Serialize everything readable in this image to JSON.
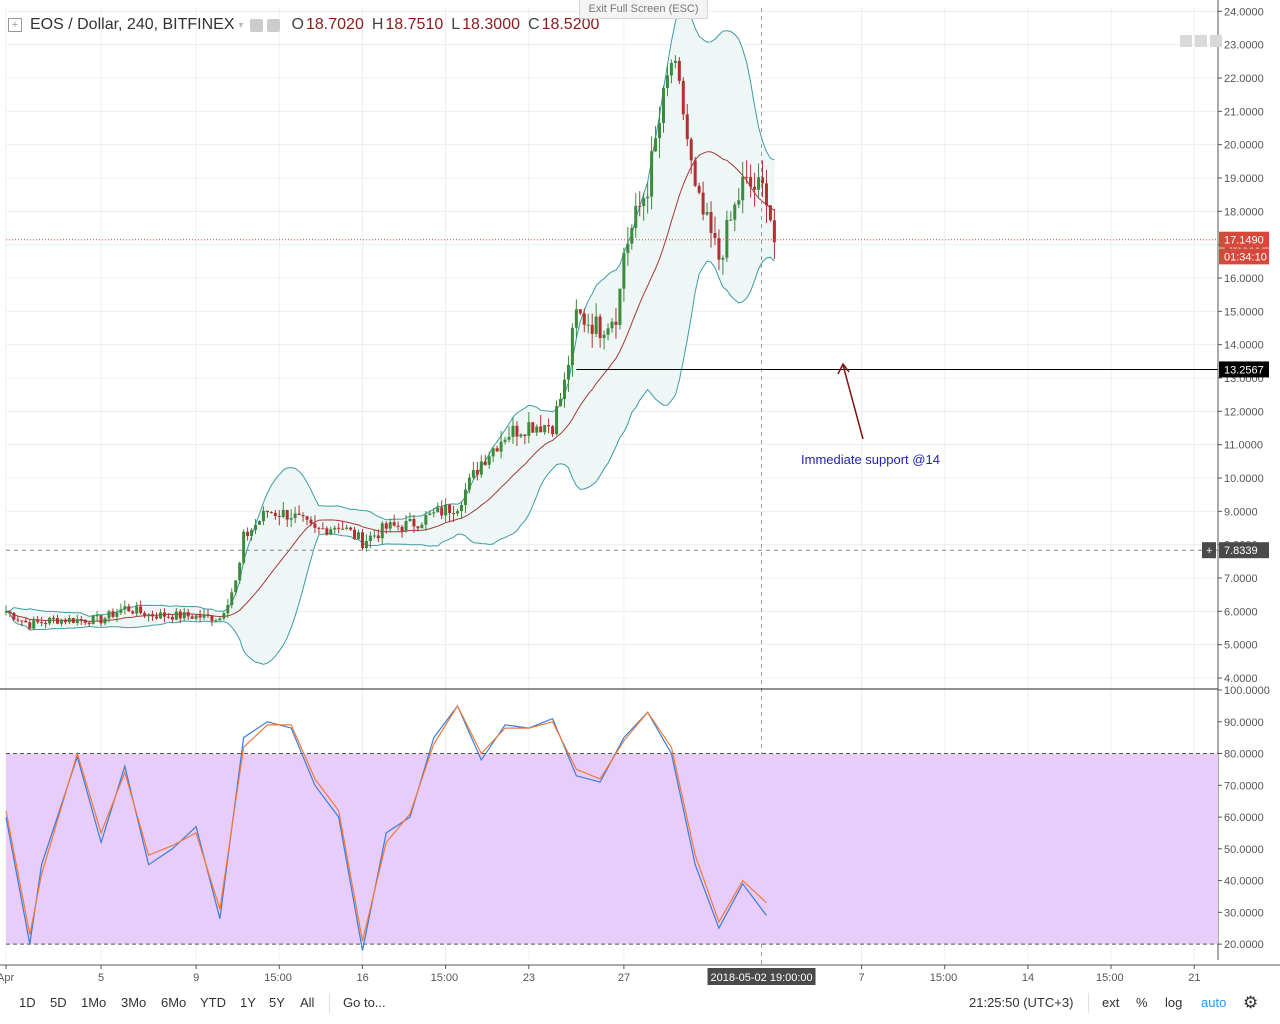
{
  "header": {
    "symbol": "EOS / Dollar, 240, BITFINEX",
    "open_label": "O",
    "open": "18.7020",
    "high_label": "H",
    "high": "18.7510",
    "low_label": "L",
    "low": "18.3000",
    "close_label": "C",
    "close": "18.5200",
    "exit_fullscreen": "Exit Full Screen (ESC)"
  },
  "price_axis": {
    "ticks": [
      "24.0000",
      "23.0000",
      "22.0000",
      "21.0000",
      "20.0000",
      "19.0000",
      "18.0000",
      "17.0000",
      "16.0000",
      "15.0000",
      "14.0000",
      "13.0000",
      "12.0000",
      "11.0000",
      "10.0000",
      "9.0000",
      "8.0000",
      "7.0000",
      "6.0000",
      "5.0000",
      "4.0000"
    ],
    "last_price_badge": "17.1490",
    "countdown_badge": "01:34:10",
    "support_badge": "13.2567",
    "crosshair_badge": "7.8339",
    "crosshair_plus": "+"
  },
  "osc_axis": {
    "ticks": [
      "100.0000",
      "90.0000",
      "80.0000",
      "70.0000",
      "60.0000",
      "50.0000",
      "40.0000",
      "30.0000",
      "20.0000"
    ]
  },
  "time_axis": {
    "ticks": [
      "Apr",
      "5",
      "9",
      "15:00",
      "16",
      "15:00",
      "23",
      "27",
      "7",
      "15:00",
      "14",
      "15:00",
      "21"
    ],
    "crosshair_label": "2018-05-02 19:00:00"
  },
  "annotation": {
    "text": "Immediate support @14"
  },
  "bottom_bar": {
    "timeframes": [
      "1D",
      "5D",
      "1Mo",
      "3Mo",
      "6Mo",
      "YTD",
      "1Y",
      "5Y",
      "All"
    ],
    "goto": "Go to...",
    "clock": "21:25:50 (UTC+3)",
    "ext": "ext",
    "percent": "%",
    "log": "log",
    "auto": "auto"
  },
  "colors": {
    "up": "#3c8a3c",
    "down": "#b33030",
    "bb_band": "#3d9ca3",
    "bb_fill": "#eef6f6",
    "ma": "#a33a3a",
    "stoch_k": "#3b7dd8",
    "stoch_d": "#f07a3c",
    "osc_zone": "#e8cdfa",
    "last_price": "#d8483a",
    "support_badge": "#000000",
    "crosshair_badge": "#4a4a4a"
  },
  "chart_data": [
    {
      "type": "candlestick",
      "title": "EOS / Dollar, 240, BITFINEX",
      "x_range": [
        "2018-04-01",
        "2018-05-22"
      ],
      "ylim": [
        3.7,
        24.1
      ],
      "indicators": [
        "Bollinger Bands (20)",
        "20 SMA basis"
      ],
      "price_path": [
        [
          "2018-04-01",
          6.0
        ],
        [
          "2018-04-02",
          5.6
        ],
        [
          "2018-04-03",
          5.75
        ],
        [
          "2018-04-05",
          5.75
        ],
        [
          "2018-04-06",
          6.1
        ],
        [
          "2018-04-07",
          5.9
        ],
        [
          "2018-04-09",
          5.85
        ],
        [
          "2018-04-10",
          5.8
        ],
        [
          "2018-04-10T18:00",
          7.0
        ],
        [
          "2018-04-11",
          8.2
        ],
        [
          "2018-04-12",
          9.0
        ],
        [
          "2018-04-13",
          8.9
        ],
        [
          "2018-04-14",
          8.4
        ],
        [
          "2018-04-15",
          8.6
        ],
        [
          "2018-04-16",
          8.1
        ],
        [
          "2018-04-17",
          8.5
        ],
        [
          "2018-04-18",
          8.6
        ],
        [
          "2018-04-19",
          8.9
        ],
        [
          "2018-04-20",
          9.2
        ],
        [
          "2018-04-21",
          10.5
        ],
        [
          "2018-04-22",
          11.3
        ],
        [
          "2018-04-23",
          11.6
        ],
        [
          "2018-04-24",
          11.6
        ],
        [
          "2018-04-24T12:00",
          12.8
        ],
        [
          "2018-04-25",
          14.9
        ],
        [
          "2018-04-26",
          14.5
        ],
        [
          "2018-04-26T18:00",
          15.0
        ],
        [
          "2018-04-27",
          16.8
        ],
        [
          "2018-04-28",
          18.8
        ],
        [
          "2018-04-29",
          22.5
        ],
        [
          "2018-04-29T12:00",
          21.0
        ],
        [
          "2018-04-30",
          18.5
        ],
        [
          "2018-05-01",
          16.6
        ],
        [
          "2018-05-02",
          18.8
        ],
        [
          "2018-05-03",
          18.6
        ],
        [
          "2018-05-03T08:00",
          17.1
        ]
      ],
      "last_price": 17.149,
      "support_level": 13.2567
    },
    {
      "type": "line",
      "title": "Stochastic",
      "ylim": [
        15,
        100
      ],
      "bands": [
        20,
        80
      ],
      "series": [
        {
          "values": [
            [
              "2018-04-01",
              60
            ],
            [
              "2018-04-02",
              20
            ],
            [
              "2018-04-02T12:00",
              45
            ],
            [
              "2018-04-04",
              79
            ],
            [
              "2018-04-05",
              52
            ],
            [
              "2018-04-06",
              76
            ],
            [
              "2018-04-07",
              45
            ],
            [
              "2018-04-08",
              50
            ],
            [
              "2018-04-09",
              57
            ],
            [
              "2018-04-10",
              28
            ],
            [
              "2018-04-11",
              85
            ],
            [
              "2018-04-12",
              90
            ],
            [
              "2018-04-13",
              88
            ],
            [
              "2018-04-14",
              70
            ],
            [
              "2018-04-15",
              60
            ],
            [
              "2018-04-16",
              18
            ],
            [
              "2018-04-17",
              55
            ],
            [
              "2018-04-18",
              60
            ],
            [
              "2018-04-19",
              85
            ],
            [
              "2018-04-20",
              95
            ],
            [
              "2018-04-21",
              78
            ],
            [
              "2018-04-22",
              89
            ],
            [
              "2018-04-23",
              88
            ],
            [
              "2018-04-24",
              91
            ],
            [
              "2018-04-25",
              73
            ],
            [
              "2018-04-26",
              71
            ],
            [
              "2018-04-27",
              85
            ],
            [
              "2018-04-28",
              93
            ],
            [
              "2018-04-29",
              80
            ],
            [
              "2018-04-30",
              45
            ],
            [
              "2018-05-01",
              25
            ],
            [
              "2018-05-02",
              39
            ],
            [
              "2018-05-03",
              29
            ]
          ]
        },
        {
          "values": [
            [
              "2018-04-01",
              62
            ],
            [
              "2018-04-02",
              23
            ],
            [
              "2018-04-02T12:00",
              42
            ],
            [
              "2018-04-04",
              80
            ],
            [
              "2018-04-05",
              55
            ],
            [
              "2018-04-06",
              74
            ],
            [
              "2018-04-07",
              48
            ],
            [
              "2018-04-08",
              51
            ],
            [
              "2018-04-09",
              55
            ],
            [
              "2018-04-10",
              31
            ],
            [
              "2018-04-11",
              82
            ],
            [
              "2018-04-12",
              89
            ],
            [
              "2018-04-13",
              89
            ],
            [
              "2018-04-14",
              72
            ],
            [
              "2018-04-15",
              62
            ],
            [
              "2018-04-16",
              21
            ],
            [
              "2018-04-17",
              52
            ],
            [
              "2018-04-18",
              61
            ],
            [
              "2018-04-19",
              83
            ],
            [
              "2018-04-20",
              95
            ],
            [
              "2018-04-21",
              80
            ],
            [
              "2018-04-22",
              88
            ],
            [
              "2018-04-23",
              88
            ],
            [
              "2018-04-24",
              90
            ],
            [
              "2018-04-25",
              75
            ],
            [
              "2018-04-26",
              72
            ],
            [
              "2018-04-27",
              84
            ],
            [
              "2018-04-28",
              93
            ],
            [
              "2018-04-29",
              82
            ],
            [
              "2018-04-30",
              48
            ],
            [
              "2018-05-01",
              27
            ],
            [
              "2018-05-02",
              40
            ],
            [
              "2018-05-03",
              33
            ]
          ]
        }
      ]
    }
  ]
}
